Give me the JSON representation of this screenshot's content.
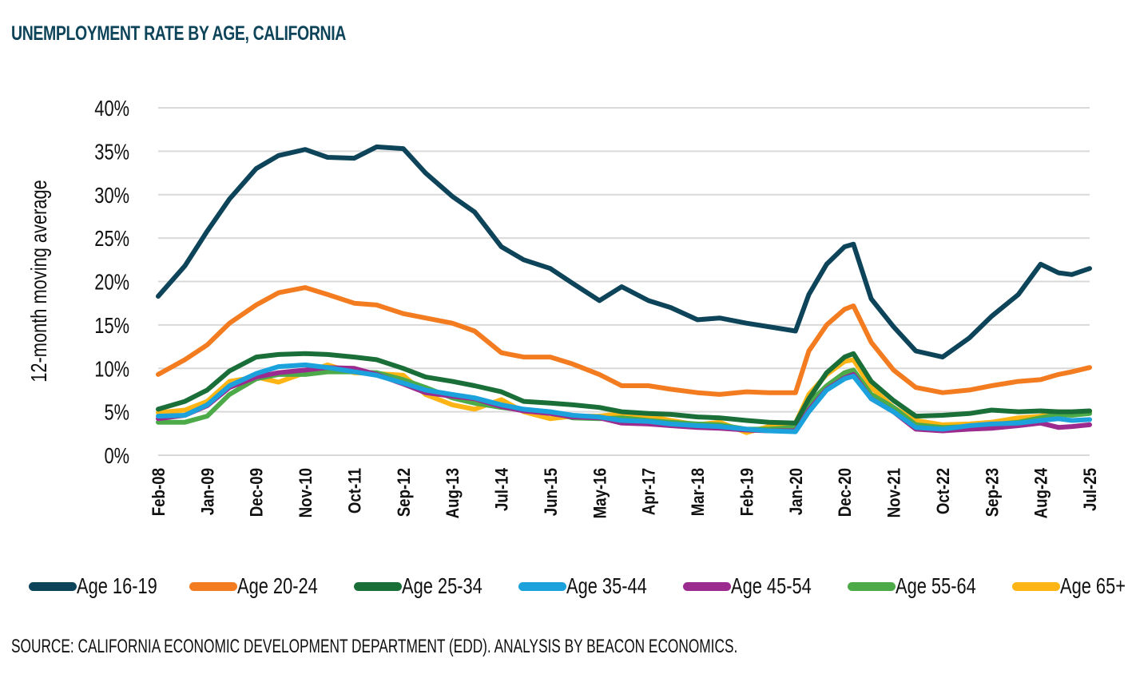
{
  "title": "UNEMPLOYMENT RATE BY AGE, CALIFORNIA",
  "source": "SOURCE: CALIFORNIA ECONOMIC DEVELOPMENT DEPARTMENT (EDD). ANALYSIS BY BEACON ECONOMICS.",
  "chart_data": {
    "type": "line",
    "title": "UNEMPLOYMENT RATE BY AGE, CALIFORNIA",
    "xlabel": "",
    "ylabel": "12-month moving average",
    "ylim": [
      0,
      40
    ],
    "yticks": [
      0,
      5,
      10,
      15,
      20,
      25,
      30,
      35,
      40
    ],
    "ytick_labels": [
      "0%",
      "5%",
      "10%",
      "15%",
      "20%",
      "25%",
      "30%",
      "35%",
      "40%"
    ],
    "x_unit": "months since Feb-08",
    "xlim": [
      0,
      209
    ],
    "xticks": [
      0,
      11,
      22,
      33,
      44,
      55,
      66,
      77,
      88,
      99,
      110,
      121,
      132,
      143,
      154,
      165,
      176,
      187,
      198,
      209
    ],
    "xtick_labels": [
      "Feb-08",
      "Jan-09",
      "Dec-09",
      "Nov-10",
      "Oct-11",
      "Sep-12",
      "Aug-13",
      "Jul-14",
      "Jun-15",
      "May-16",
      "Apr-17",
      "Mar-18",
      "Feb-19",
      "Jan-20",
      "Dec-20",
      "Nov-21",
      "Oct-22",
      "Sep-23",
      "Aug-24",
      "Jul-25"
    ],
    "grid": "horizontal",
    "legend_position": "bottom",
    "x": [
      0,
      6,
      11,
      16,
      22,
      27,
      33,
      38,
      44,
      49,
      55,
      60,
      66,
      71,
      77,
      82,
      88,
      93,
      99,
      104,
      110,
      115,
      121,
      126,
      132,
      137,
      143,
      146,
      150,
      154,
      156,
      160,
      165,
      170,
      176,
      182,
      187,
      193,
      198,
      202,
      205,
      209
    ],
    "series": [
      {
        "name": "Age 16-19",
        "color": "#0d4459",
        "values": [
          18.3,
          21.8,
          25.8,
          29.5,
          33.0,
          34.5,
          35.2,
          34.3,
          34.2,
          35.5,
          35.3,
          32.5,
          29.8,
          28.0,
          24.0,
          22.5,
          21.5,
          19.8,
          17.8,
          19.4,
          17.8,
          17.0,
          15.6,
          15.8,
          15.2,
          14.8,
          14.3,
          18.5,
          22.0,
          24.0,
          24.3,
          18.0,
          14.8,
          12.0,
          11.3,
          13.5,
          16.0,
          18.5,
          22.0,
          21.0,
          20.8,
          21.5
        ]
      },
      {
        "name": "Age 20-24",
        "color": "#f47c20",
        "values": [
          9.3,
          11.0,
          12.7,
          15.2,
          17.3,
          18.7,
          19.3,
          18.5,
          17.5,
          17.3,
          16.3,
          15.8,
          15.2,
          14.3,
          11.8,
          11.3,
          11.3,
          10.5,
          9.3,
          8.0,
          8.0,
          7.6,
          7.2,
          7.0,
          7.3,
          7.2,
          7.2,
          12.0,
          15.0,
          16.8,
          17.2,
          13.0,
          9.8,
          7.8,
          7.2,
          7.5,
          8.0,
          8.5,
          8.7,
          9.3,
          9.6,
          10.1
        ]
      },
      {
        "name": "Age 25-34",
        "color": "#1a6e37",
        "values": [
          5.3,
          6.2,
          7.5,
          9.7,
          11.3,
          11.6,
          11.7,
          11.6,
          11.3,
          11.0,
          10.0,
          9.0,
          8.5,
          8.0,
          7.3,
          6.2,
          6.0,
          5.8,
          5.5,
          5.0,
          4.8,
          4.7,
          4.4,
          4.3,
          4.0,
          3.8,
          3.7,
          6.5,
          9.5,
          11.3,
          11.7,
          8.5,
          6.3,
          4.5,
          4.6,
          4.8,
          5.2,
          5.0,
          5.1,
          5.0,
          5.0,
          5.1
        ]
      },
      {
        "name": "Age 35-44",
        "color": "#1ba1dc",
        "values": [
          4.5,
          4.6,
          5.8,
          8.0,
          9.4,
          10.2,
          10.4,
          10.1,
          9.6,
          9.2,
          8.3,
          7.5,
          7.0,
          6.6,
          5.8,
          5.3,
          5.0,
          4.6,
          4.4,
          4.0,
          3.9,
          3.6,
          3.4,
          3.3,
          3.0,
          2.8,
          2.7,
          5.0,
          7.5,
          8.8,
          9.1,
          6.5,
          5.0,
          3.2,
          3.0,
          3.4,
          3.6,
          3.7,
          4.0,
          4.2,
          4.0,
          4.1
        ]
      },
      {
        "name": "Age 45-54",
        "color": "#9c2b8f",
        "values": [
          4.2,
          4.6,
          5.7,
          7.8,
          9.0,
          9.5,
          9.8,
          10.1,
          10.0,
          9.3,
          8.2,
          7.2,
          6.8,
          6.5,
          5.6,
          5.1,
          4.8,
          4.4,
          4.3,
          3.7,
          3.6,
          3.4,
          3.2,
          3.1,
          2.9,
          2.8,
          2.8,
          5.2,
          7.6,
          8.9,
          9.3,
          6.5,
          5.0,
          3.0,
          2.8,
          3.0,
          3.1,
          3.4,
          3.7,
          3.2,
          3.3,
          3.5
        ]
      },
      {
        "name": "Age 55-64",
        "color": "#4caa49",
        "values": [
          3.8,
          3.8,
          4.5,
          7.0,
          8.8,
          9.3,
          9.3,
          9.6,
          9.6,
          9.5,
          8.7,
          7.8,
          6.6,
          6.0,
          5.5,
          5.2,
          5.0,
          4.3,
          4.2,
          4.3,
          4.0,
          3.8,
          3.6,
          3.5,
          3.0,
          3.0,
          3.2,
          6.0,
          8.0,
          9.5,
          9.8,
          7.0,
          5.5,
          3.5,
          3.2,
          3.3,
          3.5,
          3.8,
          4.3,
          4.7,
          4.6,
          4.8
        ]
      },
      {
        "name": "Age 65+",
        "color": "#fdb515",
        "values": [
          4.9,
          5.2,
          6.2,
          8.5,
          9.0,
          8.4,
          9.5,
          10.4,
          9.5,
          9.4,
          9.2,
          7.0,
          5.8,
          5.3,
          6.4,
          5.0,
          4.2,
          4.5,
          4.5,
          4.8,
          4.5,
          4.0,
          3.5,
          3.8,
          2.6,
          3.3,
          3.7,
          7.0,
          9.3,
          10.8,
          11.0,
          7.8,
          5.5,
          4.0,
          3.5,
          3.6,
          3.8,
          4.3,
          4.5,
          5.0,
          4.8,
          5.0
        ]
      }
    ]
  }
}
